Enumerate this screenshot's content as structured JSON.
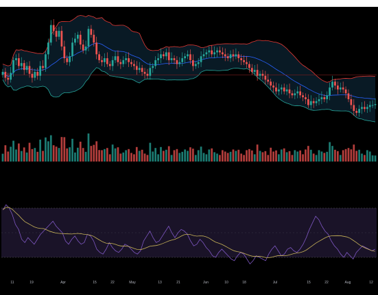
{
  "colors": {
    "up": "#26a69a",
    "down": "#ef5350",
    "bb_upper": "#e53935",
    "bb_lower": "#26a69a",
    "bb_basis": "#2962ff",
    "bb_fill": "#0b1e2c",
    "rsi_line": "#7e57c2",
    "rsi_ma": "#c9b458",
    "rsi_band": "#1a1328",
    "price_line": "#7b1c1c",
    "axis_text": "#b2b5be"
  },
  "x_axis_labels": [
    "11",
    "19",
    "Apr",
    "15",
    "22",
    "May",
    "13",
    "21",
    "Jun",
    "10",
    "18",
    "Jul",
    "15",
    "22",
    "Aug",
    "12"
  ],
  "chart_data": [
    {
      "type": "candlestick",
      "xlabel": "",
      "ylabel": "",
      "series": [
        {
          "name": "",
          "kind": "candles",
          "close": [
            74,
            68,
            66,
            73,
            86,
            88,
            80,
            83,
            76,
            80,
            72,
            68,
            74,
            70,
            80,
            78,
            92,
            104,
            122,
            116,
            110,
            116,
            100,
            88,
            84,
            90,
            104,
            108,
            112,
            102,
            96,
            100,
            118,
            112,
            104,
            92,
            86,
            84,
            88,
            82,
            80,
            86,
            90,
            84,
            82,
            86,
            88,
            84,
            82,
            80,
            76,
            78,
            74,
            72,
            70,
            78,
            80,
            86,
            88,
            92,
            90,
            94,
            86,
            88,
            86,
            82,
            84,
            88,
            90,
            92,
            86,
            80,
            82,
            84,
            90,
            92,
            94,
            96,
            92,
            94,
            96,
            94,
            92,
            90,
            88,
            92,
            90,
            92,
            88,
            86,
            84,
            82,
            78,
            74,
            76,
            70,
            72,
            70,
            66,
            64,
            60,
            58,
            54,
            56,
            58,
            54,
            56,
            52,
            50,
            52,
            54,
            50,
            48,
            46,
            40,
            44,
            42,
            44,
            46,
            48,
            46,
            50,
            58,
            64,
            60,
            56,
            58,
            56,
            52,
            46,
            40,
            34,
            32,
            36,
            38,
            36,
            38,
            40,
            40,
            41
          ],
          "wick_range": [
            20,
            128
          ]
        },
        {
          "name": "",
          "kind": "bollinger_upper"
        },
        {
          "name": "",
          "kind": "bollinger_basis"
        },
        {
          "name": "",
          "kind": "bollinger_lower"
        },
        {
          "name": "",
          "kind": "volume"
        }
      ],
      "legend": "none",
      "grid": false
    },
    {
      "type": "line",
      "xlabel": "",
      "ylabel": "",
      "ylim": [
        0,
        100
      ],
      "bands": [
        30,
        70
      ],
      "series": [
        {
          "name": "",
          "kind": "rsi",
          "values": [
            78,
            84,
            80,
            72,
            60,
            54,
            42,
            38,
            44,
            40,
            36,
            42,
            48,
            52,
            56,
            60,
            64,
            58,
            54,
            50,
            40,
            36,
            42,
            46,
            40,
            36,
            38,
            48,
            46,
            40,
            30,
            26,
            24,
            30,
            38,
            32,
            28,
            26,
            30,
            36,
            34,
            30,
            26,
            24,
            28,
            40,
            46,
            52,
            44,
            38,
            40,
            46,
            52,
            58,
            50,
            44,
            50,
            54,
            52,
            48,
            40,
            34,
            36,
            42,
            38,
            32,
            28,
            22,
            20,
            26,
            30,
            26,
            22,
            18,
            16,
            22,
            26,
            24,
            18,
            12,
            16,
            22,
            20,
            18,
            16,
            24,
            30,
            34,
            28,
            22,
            24,
            30,
            32,
            28,
            26,
            30,
            36,
            44,
            54,
            62,
            70,
            66,
            58,
            52,
            48,
            40,
            34,
            30,
            24,
            20,
            26,
            22,
            18,
            26,
            30,
            34,
            32,
            30,
            28,
            30
          ]
        },
        {
          "name": "",
          "kind": "rsi_ma"
        }
      ],
      "legend": "none",
      "grid": false
    }
  ]
}
